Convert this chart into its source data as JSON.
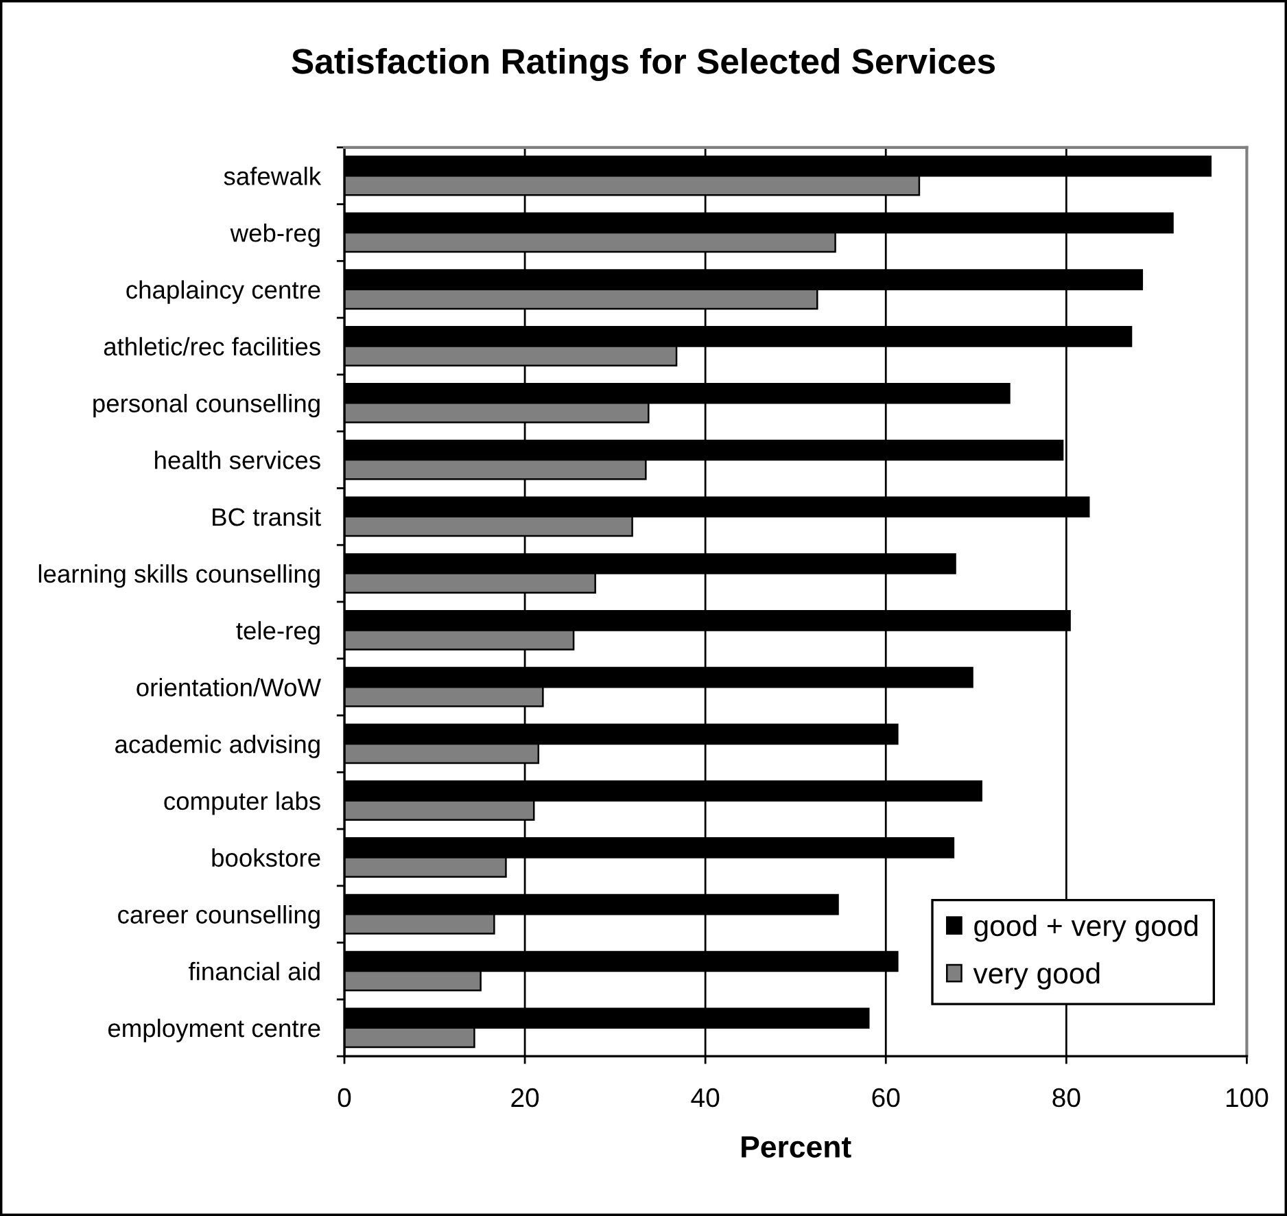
{
  "chart_data": {
    "type": "bar",
    "orientation": "horizontal",
    "title": "Satisfaction Ratings for Selected Services",
    "xlabel": "Percent",
    "categories": [
      "safewalk",
      "web-reg",
      "chaplaincy centre",
      "athletic/rec facilities",
      "personal counselling",
      "health services",
      "BC transit",
      "learning skills counselling",
      "tele-reg",
      "orientation/WoW",
      "academic advising",
      "computer labs",
      "bookstore",
      "career counselling",
      "financial aid",
      "employment centre"
    ],
    "series": [
      {
        "name": "good + very good",
        "color": "#000000",
        "values": [
          96.0,
          91.8,
          88.4,
          87.2,
          73.7,
          79.6,
          82.5,
          67.7,
          80.4,
          69.6,
          61.3,
          70.6,
          67.5,
          54.7,
          61.3,
          58.1
        ]
      },
      {
        "name": "very good",
        "color": "#808080",
        "values": [
          63.7,
          54.4,
          52.4,
          36.8,
          33.7,
          33.4,
          31.9,
          27.8,
          25.4,
          22.0,
          21.5,
          21.0,
          17.9,
          16.6,
          15.1,
          14.4
        ]
      }
    ],
    "xlim": [
      0,
      100
    ],
    "xticks": [
      0,
      20,
      40,
      60,
      80,
      100
    ],
    "grid": "x",
    "legend": "bottom right"
  }
}
